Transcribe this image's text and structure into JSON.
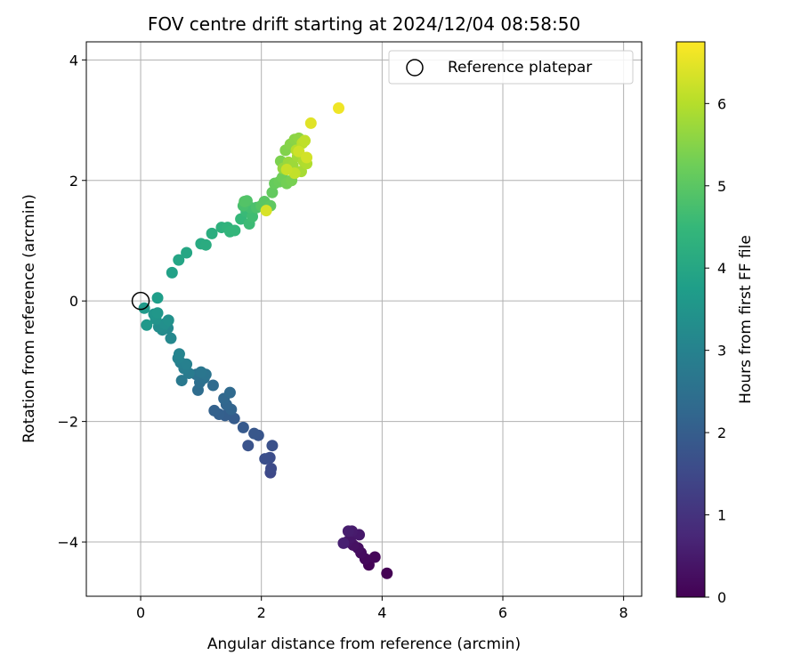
{
  "chart_data": {
    "type": "scatter",
    "title": "FOV centre drift starting at 2024/12/04 08:58:50",
    "xlabel": "Angular distance from reference (arcmin)",
    "ylabel": "Rotation from reference (arcmin)",
    "xlim": [
      -0.9,
      8.3
    ],
    "ylim": [
      -4.9,
      4.3
    ],
    "x_ticks": [
      0,
      2,
      4,
      6,
      8
    ],
    "x_tick_labels": [
      "0",
      "2",
      "4",
      "6",
      "8"
    ],
    "y_ticks": [
      -4,
      -2,
      0,
      2,
      4
    ],
    "y_tick_labels": [
      "−4",
      "−2",
      "0",
      "2",
      "4"
    ],
    "grid": true,
    "legend": {
      "placement": "top-right",
      "entries": [
        {
          "label": "Reference platepar",
          "marker": "open-circle"
        }
      ]
    },
    "reference_point": {
      "x": 0,
      "y": 0
    },
    "colorbar": {
      "label": "Hours from first FF file",
      "range": [
        0,
        6.75
      ],
      "ticks": [
        0,
        1,
        2,
        3,
        4,
        5,
        6
      ],
      "tick_labels": [
        "0",
        "1",
        "2",
        "3",
        "4",
        "5",
        "6"
      ],
      "colormap": "viridis",
      "stops": [
        "#440154",
        "#482878",
        "#3e4989",
        "#31688e",
        "#26828e",
        "#1f9e89",
        "#35b779",
        "#6ece58",
        "#b5de2b",
        "#fde725"
      ]
    },
    "series": [
      {
        "points": [
          {
            "x": 4.08,
            "y": -4.52,
            "t": 0.0
          },
          {
            "x": 3.78,
            "y": -4.38,
            "t": 0.05
          },
          {
            "x": 3.88,
            "y": -4.25,
            "t": 0.1
          },
          {
            "x": 3.72,
            "y": -4.28,
            "t": 0.15
          },
          {
            "x": 3.65,
            "y": -4.18,
            "t": 0.2
          },
          {
            "x": 3.6,
            "y": -4.1,
            "t": 0.25
          },
          {
            "x": 3.52,
            "y": -4.05,
            "t": 0.3
          },
          {
            "x": 3.42,
            "y": -4.0,
            "t": 0.35
          },
          {
            "x": 3.48,
            "y": -3.92,
            "t": 0.4
          },
          {
            "x": 3.62,
            "y": -3.88,
            "t": 0.45
          },
          {
            "x": 3.5,
            "y": -3.82,
            "t": 0.5
          },
          {
            "x": 3.44,
            "y": -3.82,
            "t": 0.55
          },
          {
            "x": 3.36,
            "y": -4.02,
            "t": 0.6
          },
          {
            "x": 2.15,
            "y": -2.85,
            "t": 1.5
          },
          {
            "x": 2.16,
            "y": -2.78,
            "t": 1.55
          },
          {
            "x": 2.14,
            "y": -2.6,
            "t": 1.6
          },
          {
            "x": 2.06,
            "y": -2.62,
            "t": 1.65
          },
          {
            "x": 2.18,
            "y": -2.4,
            "t": 1.7
          },
          {
            "x": 1.78,
            "y": -2.4,
            "t": 1.75
          },
          {
            "x": 1.95,
            "y": -2.23,
            "t": 1.8
          },
          {
            "x": 1.88,
            "y": -2.2,
            "t": 1.85
          },
          {
            "x": 1.7,
            "y": -2.1,
            "t": 1.9
          },
          {
            "x": 1.55,
            "y": -1.95,
            "t": 1.95
          },
          {
            "x": 1.4,
            "y": -1.9,
            "t": 2.0
          },
          {
            "x": 1.3,
            "y": -1.88,
            "t": 2.05
          },
          {
            "x": 1.22,
            "y": -1.82,
            "t": 2.1
          },
          {
            "x": 1.5,
            "y": -1.8,
            "t": 2.15
          },
          {
            "x": 1.42,
            "y": -1.72,
            "t": 2.2
          },
          {
            "x": 1.38,
            "y": -1.62,
            "t": 2.25
          },
          {
            "x": 1.48,
            "y": -1.52,
            "t": 2.3
          },
          {
            "x": 1.2,
            "y": -1.4,
            "t": 2.35
          },
          {
            "x": 0.95,
            "y": -1.48,
            "t": 2.4
          },
          {
            "x": 0.98,
            "y": -1.35,
            "t": 2.45
          },
          {
            "x": 1.05,
            "y": -1.28,
            "t": 2.5
          },
          {
            "x": 0.92,
            "y": -1.22,
            "t": 2.55
          },
          {
            "x": 1.08,
            "y": -1.22,
            "t": 2.6
          },
          {
            "x": 1.0,
            "y": -1.18,
            "t": 2.65
          },
          {
            "x": 0.68,
            "y": -1.32,
            "t": 2.75
          },
          {
            "x": 0.8,
            "y": -1.2,
            "t": 2.8
          },
          {
            "x": 0.72,
            "y": -1.12,
            "t": 2.85
          },
          {
            "x": 0.66,
            "y": -1.02,
            "t": 2.9
          },
          {
            "x": 0.76,
            "y": -1.05,
            "t": 2.95
          },
          {
            "x": 0.62,
            "y": -0.95,
            "t": 3.0
          },
          {
            "x": 0.64,
            "y": -0.88,
            "t": 3.05
          },
          {
            "x": 0.5,
            "y": -0.62,
            "t": 3.15
          },
          {
            "x": 0.45,
            "y": -0.45,
            "t": 3.2
          },
          {
            "x": 0.36,
            "y": -0.48,
            "t": 3.25
          },
          {
            "x": 0.3,
            "y": -0.43,
            "t": 3.3
          },
          {
            "x": 0.4,
            "y": -0.38,
            "t": 3.35
          },
          {
            "x": 0.46,
            "y": -0.32,
            "t": 3.4
          },
          {
            "x": 0.25,
            "y": -0.3,
            "t": 3.45
          },
          {
            "x": 0.22,
            "y": -0.22,
            "t": 3.5
          },
          {
            "x": 0.28,
            "y": -0.2,
            "t": 3.55
          },
          {
            "x": 0.1,
            "y": -0.4,
            "t": 3.6
          },
          {
            "x": 0.06,
            "y": -0.12,
            "t": 3.65
          },
          {
            "x": 0.28,
            "y": 0.05,
            "t": 3.75
          },
          {
            "x": 0.52,
            "y": 0.47,
            "t": 3.85
          },
          {
            "x": 0.63,
            "y": 0.68,
            "t": 3.95
          },
          {
            "x": 0.76,
            "y": 0.8,
            "t": 4.0
          },
          {
            "x": 1.0,
            "y": 0.95,
            "t": 4.1
          },
          {
            "x": 1.08,
            "y": 0.93,
            "t": 4.15
          },
          {
            "x": 1.18,
            "y": 1.12,
            "t": 4.2
          },
          {
            "x": 1.34,
            "y": 1.22,
            "t": 4.3
          },
          {
            "x": 1.44,
            "y": 1.22,
            "t": 4.35
          },
          {
            "x": 1.48,
            "y": 1.15,
            "t": 4.4
          },
          {
            "x": 1.56,
            "y": 1.17,
            "t": 4.45
          },
          {
            "x": 1.66,
            "y": 1.36,
            "t": 4.5
          },
          {
            "x": 1.75,
            "y": 1.48,
            "t": 4.55
          },
          {
            "x": 1.8,
            "y": 1.28,
            "t": 4.6
          },
          {
            "x": 1.85,
            "y": 1.4,
            "t": 4.65
          },
          {
            "x": 1.82,
            "y": 1.55,
            "t": 4.7
          },
          {
            "x": 1.7,
            "y": 1.58,
            "t": 4.75
          },
          {
            "x": 1.92,
            "y": 1.55,
            "t": 4.8
          },
          {
            "x": 1.76,
            "y": 1.66,
            "t": 4.85
          },
          {
            "x": 1.72,
            "y": 1.65,
            "t": 4.9
          },
          {
            "x": 2.0,
            "y": 1.58,
            "t": 4.95
          },
          {
            "x": 2.05,
            "y": 1.65,
            "t": 5.0
          },
          {
            "x": 2.15,
            "y": 1.58,
            "t": 5.05
          },
          {
            "x": 2.18,
            "y": 1.8,
            "t": 5.1
          },
          {
            "x": 2.22,
            "y": 1.95,
            "t": 5.15
          },
          {
            "x": 2.3,
            "y": 1.98,
            "t": 5.2
          },
          {
            "x": 2.35,
            "y": 2.05,
            "t": 5.25
          },
          {
            "x": 2.42,
            "y": 1.95,
            "t": 5.3
          },
          {
            "x": 2.5,
            "y": 2.0,
            "t": 5.35
          },
          {
            "x": 2.32,
            "y": 2.32,
            "t": 5.4
          },
          {
            "x": 2.4,
            "y": 2.5,
            "t": 5.45
          },
          {
            "x": 2.48,
            "y": 2.6,
            "t": 5.5
          },
          {
            "x": 2.55,
            "y": 2.68,
            "t": 5.55
          },
          {
            "x": 2.62,
            "y": 2.7,
            "t": 5.6
          },
          {
            "x": 2.36,
            "y": 2.2,
            "t": 5.65
          },
          {
            "x": 2.45,
            "y": 2.3,
            "t": 5.7
          },
          {
            "x": 2.52,
            "y": 2.25,
            "t": 5.75
          },
          {
            "x": 2.6,
            "y": 2.4,
            "t": 5.8
          },
          {
            "x": 2.66,
            "y": 2.15,
            "t": 5.85
          },
          {
            "x": 2.7,
            "y": 2.32,
            "t": 5.9
          },
          {
            "x": 2.75,
            "y": 2.28,
            "t": 5.95
          },
          {
            "x": 2.58,
            "y": 2.5,
            "t": 6.0
          },
          {
            "x": 2.68,
            "y": 2.62,
            "t": 6.05
          },
          {
            "x": 2.72,
            "y": 2.66,
            "t": 6.1
          },
          {
            "x": 2.55,
            "y": 2.12,
            "t": 6.15
          },
          {
            "x": 2.42,
            "y": 2.18,
            "t": 6.2
          },
          {
            "x": 2.62,
            "y": 2.48,
            "t": 6.25
          },
          {
            "x": 2.75,
            "y": 2.38,
            "t": 6.3
          },
          {
            "x": 2.08,
            "y": 1.5,
            "t": 6.35
          },
          {
            "x": 2.82,
            "y": 2.95,
            "t": 6.45
          },
          {
            "x": 3.28,
            "y": 3.2,
            "t": 6.6
          }
        ]
      }
    ]
  }
}
